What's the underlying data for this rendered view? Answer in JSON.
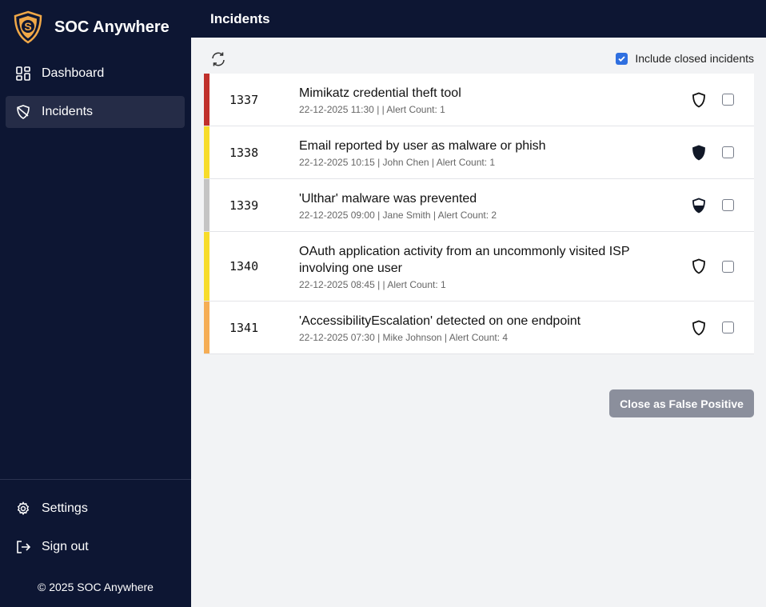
{
  "app": {
    "name": "SOC Anywhere",
    "copyright": "© 2025 SOC Anywhere",
    "brand_color": "#f0a848"
  },
  "sidebar": {
    "items": [
      {
        "label": "Dashboard",
        "icon": "grid-icon"
      },
      {
        "label": "Incidents",
        "icon": "shield-icon",
        "active": true
      }
    ],
    "bottom": [
      {
        "label": "Settings",
        "icon": "gear-icon"
      },
      {
        "label": "Sign out",
        "icon": "sign-out-icon"
      }
    ]
  },
  "header": {
    "title": "Incidents"
  },
  "toolbar": {
    "include_closed_label": "Include closed incidents",
    "include_closed": true
  },
  "incidents": [
    {
      "id": "1337",
      "title": "Mimikatz credential theft tool",
      "meta": "22-12-2025 11:30 | | Alert Count: 1",
      "severity_color": "#c0302b",
      "status": "open"
    },
    {
      "id": "1338",
      "title": "Email reported by user as malware or phish",
      "meta": "22-12-2025 10:15 | John Chen | Alert Count: 1",
      "severity_color": "#f7dc2a",
      "status": "closed"
    },
    {
      "id": "1339",
      "title": "'Ulthar' malware was prevented",
      "meta": "22-12-2025 09:00 | Jane Smith | Alert Count: 2",
      "severity_color": "#c4c4c4",
      "status": "in-progress"
    },
    {
      "id": "1340",
      "title": "OAuth application activity from an uncommonly visited ISP involving one user",
      "meta": "22-12-2025 08:45 | | Alert Count: 1",
      "severity_color": "#f7dc2a",
      "status": "open"
    },
    {
      "id": "1341",
      "title": "'AccessibilityEscalation' detected on one endpoint",
      "meta": "22-12-2025 07:30 | Mike Johnson | Alert Count: 4",
      "severity_color": "#f5ad55",
      "status": "open"
    }
  ],
  "actions": {
    "close_fp_label": "Close as False Positive"
  }
}
